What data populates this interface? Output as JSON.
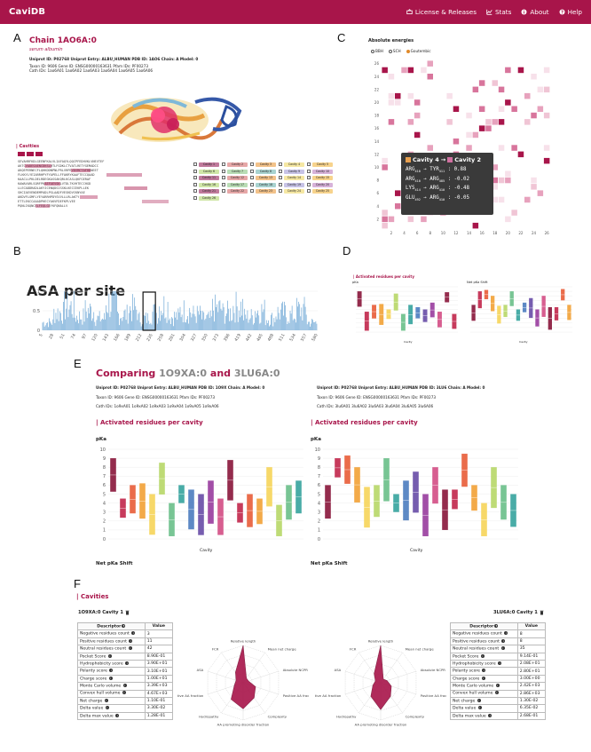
{
  "navbar": {
    "brand": "CaviDB",
    "links": [
      {
        "label": "License & Releases",
        "icon": "license-icon"
      },
      {
        "label": "Stats",
        "icon": "stats-icon"
      },
      {
        "label": "About",
        "icon": "info-icon"
      },
      {
        "label": "Help",
        "icon": "help-icon"
      }
    ]
  },
  "panels": {
    "a": "A",
    "b": "B",
    "c": "C",
    "d": "D",
    "e": "E",
    "f": "F"
  },
  "panelA": {
    "title": "Chain 1AO6A:0",
    "subtitle": "serum albumin",
    "meta1": "Uniprot ID: P02768  Uniprot Entry: ALBU_HUMAN  PDB ID: 1AO6  Chain: A  Model: 0",
    "meta2": "Taxon ID: 9606  Gene ID: ENSG00000163631  Pfam IDs: PF00273",
    "meta2b": "Cath IDs: 1ao6A01  1ao6A02  1ao6A03  1ao6A04  1ao6A05  1ao6A06",
    "cavities_label": "| Cavities",
    "seq_lines": [
      "SEVAHRFKDLGEENFKALVLIAFAQYLQQCPFEDHVKLVNEVTEFAKTCVADESAENCDKSLHTLFGDKLCTVATLRETYGEMADCCAKQEPERNECFLQHKDDNPNLPRLVRPEVDVMCTAFHDNEETFLKKYLYEIARRHPYFYAPELLFFAKRYKAAFTECCQAADKAACLLPKLDE",
      "LRDEGKASSAKQRLKCASLQKFGERAFKAWAVARLSQRFPKAEFAEVSKLVTDLTKVHTECCHGDLLECADDRADLAKYICENQDSISSKLKECCEKPLLEKSHCIAEVENDEMPADLPSLAADFVESKDVCKNYAEAKDVFLGMFLYEYARRHPDYSVVLLLRLAKTYETTLEK",
      "CCAAADPHECYAKVFDEFKPLVEEPQNLIKQNCELFEQLGEYKFQNALLVRYTKKVPQVSTPTLVEVSRNLGKVGSKCCKHPEAKRMPCAEDYLSVVLNQLCVLHEKTPVSDRVTKCCTESLVNRRPCFSALEVDETYVPKEFNAETFTFHADICTLSEKERQIKKQTALVELVKHKPKATKEQLKAVMDDFAAFVEKCCKADDKETCFAEEGKKLVAASQAALGL",
      "SEVAHRFKDLGEENFKALVLIAFAQYLQQCPFEDHVKLVNEVTEF",
      "AKTCVADESAENCDKSLHTLFGDKLCTVATLRETYGEMADCC",
      "AKQEPERNECFLQHKDDNPNLPRLVRPEVDVMCTAFHDNEET",
      "FLKKYLYEIARRHPYFYAPELLFFAKRYKAAFTECCQAAD",
      "KAACLLPKLDELRDEGKASSAKQRLKCASLQKFGERAF",
      "KAWAVARLSQRFPKAEFAEVSKLVTDLTKVHTECCHGD",
      "LLECADDRADLAKYICENQDSISSKLKECCEKPLLEK",
      "SHCIAEVENDEMPADLPSLAADFVESKDVCKNYAE",
      "AKDVFLGMFLYEYARRHPDYSVVLLLRLAKTY",
      "ETTLEKCCAAADPHECYAKVFDEFKPLVEE",
      "PQNLIKQNCELFEQLGEYKFQNALLV"
    ],
    "cavities": [
      "Cavity 1",
      "Cavity 2",
      "Cavity 3",
      "Cavity 4",
      "Cavity 5",
      "Cavity 6",
      "Cavity 7",
      "Cavity 8",
      "Cavity 9",
      "Cavity 10",
      "Cavity 11",
      "Cavity 12",
      "Cavity 13",
      "Cavity 14",
      "Cavity 15",
      "Cavity 16",
      "Cavity 17",
      "Cavity 18",
      "Cavity 19",
      "Cavity 20",
      "Cavity 21",
      "Cavity 22",
      "Cavity 23",
      "Cavity 24",
      "Cavity 25",
      "Cavity 26"
    ],
    "cavity_colors": [
      "#c07a9b",
      "#e6a7a7",
      "#f2c28a",
      "#f5e7a3",
      "#f7d38c",
      "#cfe6a7",
      "#b9ddb5",
      "#a8d2cf",
      "#c7c3e6",
      "#d7b2d9"
    ]
  },
  "panelB": {
    "title": "ASA per site",
    "ylabels": [
      "1",
      "0.5",
      "0"
    ],
    "xticks": [
      "5",
      "28",
      "51",
      "74",
      "97",
      "120",
      "143",
      "166",
      "189",
      "212",
      "235",
      "258",
      "281",
      "304",
      "327",
      "350",
      "373",
      "396",
      "419",
      "442",
      "465",
      "488",
      "511",
      "534",
      "557",
      "580"
    ]
  },
  "panelC": {
    "title": "Absolute energies",
    "radio": [
      "BBH",
      "SCH",
      "Goutembic"
    ],
    "yticks": [
      "26",
      "24",
      "22",
      "20",
      "18",
      "16",
      "14",
      "12",
      "10",
      "8",
      "6",
      "4",
      "2"
    ],
    "xticks": [
      "2",
      "4",
      "6",
      "8",
      "10",
      "12",
      "14",
      "16",
      "18",
      "20",
      "22",
      "24",
      "26"
    ],
    "tooltip": {
      "header_from": "Cavity 4",
      "arrow": "→",
      "header_to": "Cavity 2",
      "rows": [
        {
          "left": "ARG",
          "lsub": "410",
          "right": "TYR",
          "rsub": "411",
          "val": ": 0.88"
        },
        {
          "left": "ARG",
          "lsub": "410",
          "right": "ARG",
          "rsub": "485",
          "val": ": -0.02"
        },
        {
          "left": "LYS",
          "lsub": "414",
          "right": "ARG",
          "rsub": "410",
          "val": ": -0.48"
        },
        {
          "left": "GLU",
          "lsub": "492",
          "right": "ARG",
          "rsub": "410",
          "val": ": -0.05"
        }
      ]
    }
  },
  "panelD": {
    "title": "| Activated residues per cavity",
    "left_label": "pKa",
    "right_label": "Net pKa Shift",
    "xlabel_left": "Cavity",
    "xlabel_right": "Cavity"
  },
  "panelE": {
    "comparing": "Comparing",
    "id1": "1O9XA:0",
    "and": "and",
    "id2": "3LU6A:0",
    "left": {
      "meta1": "Uniprot ID: P02768  Uniprot Entry: ALBU_HUMAN  PDB ID: 1O9X  Chain: A  Model: 0",
      "meta2": "Taxon ID: 9606  Gene ID: ENSG00000163631  Pfam IDs: PF00273",
      "meta3": "Cath IDs: 1o9xA01  1o9xA02  1o9xA03  1o9xA04  1o9xA05  1o9xA06"
    },
    "right": {
      "meta1": "Uniprot ID: P02768  Uniprot Entry: ALBU_HUMAN  PDB ID: 3LU6  Chain: A  Model: 0",
      "meta2": "Taxon ID: 9606  Gene ID: ENSG00000163631  Pfam IDs: PF00273",
      "meta3": "Cath IDs: 3lu6A01  3lu6A02  3lu6A03  3lu6A04  3lu6A05  3lu6A06"
    },
    "section_title": "| Activated residues per cavity",
    "ylabel": "pKa",
    "yticks": [
      "10",
      "9",
      "8",
      "7",
      "6",
      "5",
      "4",
      "3",
      "2",
      "1",
      "0"
    ],
    "xlabel": "Cavity",
    "net_label": "Net pKa Shift"
  },
  "panelF": {
    "title": "| Cavities",
    "left_title": "1O9XA:0 Cavity 1",
    "right_title": "3LU6A:0 Cavity 1",
    "table_header": [
      "Descriptor",
      "Value"
    ],
    "descriptors": [
      "Negative residues count",
      "Positive residues count",
      "Neutral residues count",
      "Pocket Score",
      "Hydrophobicity score",
      "Polarity score",
      "Charge score",
      "Monte Carlo volume",
      "Convex hull volume",
      "Net charge",
      "Delta value",
      "Delta max value"
    ],
    "left_values": [
      "3",
      "11",
      "42",
      "8.90E-01",
      "3.90E+01",
      "3.10E+01",
      "1.00E+01",
      "3.39E+03",
      "4.67E+03",
      "1.10E-01",
      "3.30E-02",
      "1.28E-01"
    ],
    "right_values": [
      "8",
      "8",
      "35",
      "9.14E-01",
      "2.08E+01",
      "2.80E+01",
      "3.00E+00",
      "2.42E+03",
      "2.86E+03",
      "1.30E-02",
      "6.35E-02",
      "2.68E-01"
    ],
    "radar_labels": [
      "Relative length",
      "Mean net charge",
      "Absolute NCPR",
      "Positive AA fraction",
      "Complexity",
      "AA promoting disorder fraction",
      "Hydropathy",
      "Negative AA fraction",
      "ASA",
      "FCR"
    ]
  },
  "chart_data": [
    {
      "type": "bar",
      "title": "ASA per site",
      "xlabel": "",
      "ylabel": "",
      "ylim": [
        0,
        1
      ],
      "categories": [
        "5",
        "28",
        "51",
        "74",
        "97",
        "120",
        "143",
        "166",
        "189",
        "212",
        "235",
        "258",
        "281",
        "304",
        "327",
        "350",
        "373",
        "396",
        "419",
        "442",
        "465",
        "488",
        "511",
        "534",
        "557",
        "580"
      ],
      "values": [
        0.2,
        0.45,
        0.6,
        0.35,
        0.5,
        0.3,
        0.7,
        0.4,
        0.55,
        0.3,
        0.45,
        0.62,
        0.35,
        0.5,
        0.4,
        0.3,
        0.55,
        0.45,
        0.6,
        0.35,
        0.5,
        0.3,
        0.45,
        0.38,
        0.52,
        0.2
      ]
    },
    {
      "type": "heatmap",
      "title": "Absolute energies",
      "xlabel": "",
      "ylabel": "",
      "xlim": [
        1,
        26
      ],
      "ylim": [
        1,
        26
      ]
    },
    {
      "type": "bar",
      "title": "Activated residues per cavity",
      "ylabel": "pKa",
      "xlabel": "Cavity",
      "ylim": [
        0,
        10
      ],
      "categories": [
        "1",
        "2",
        "3",
        "4",
        "5",
        "6",
        "7",
        "8",
        "9",
        "10",
        "11",
        "12",
        "13",
        "14",
        "15",
        "16",
        "17",
        "18",
        "19",
        "20"
      ],
      "series": [
        {
          "name": "1O9XA:0",
          "values": [
            9,
            4.5,
            6,
            6.2,
            5,
            8.5,
            4,
            6,
            5.5,
            5,
            6.5,
            4.5,
            8.8,
            4,
            5,
            4.5,
            8,
            3.8,
            6,
            6.5
          ]
        },
        {
          "name": "3LU6A:0",
          "values": [
            6,
            9,
            9.3,
            8,
            5.8,
            6,
            9,
            5,
            6.5,
            7.5,
            5,
            8,
            5.5,
            5.5,
            9.5,
            6,
            4,
            8,
            6,
            5
          ]
        }
      ]
    }
  ]
}
